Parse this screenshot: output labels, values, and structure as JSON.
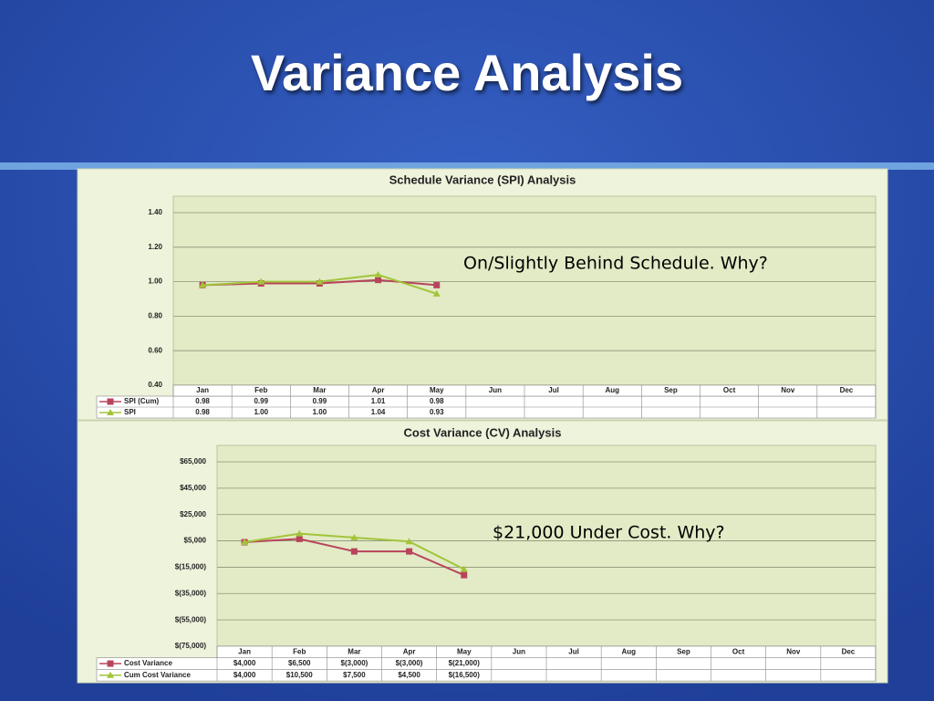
{
  "title": "Variance Analysis",
  "chart_data": [
    {
      "type": "line",
      "title": "Schedule Variance (SPI) Analysis",
      "categories": [
        "Jan",
        "Feb",
        "Mar",
        "Apr",
        "May",
        "Jun",
        "Jul",
        "Aug",
        "Sep",
        "Oct",
        "Nov",
        "Dec"
      ],
      "series": [
        {
          "name": "SPI (Cum)",
          "color": "#b8445c",
          "marker": "square",
          "values": [
            0.98,
            0.99,
            0.99,
            1.01,
            0.98,
            null,
            null,
            null,
            null,
            null,
            null,
            null
          ],
          "value_labels": [
            "0.98",
            "0.99",
            "0.99",
            "1.01",
            "0.98",
            null,
            null,
            null,
            null,
            null,
            null,
            null
          ]
        },
        {
          "name": "SPI",
          "color": "#a3c43a",
          "marker": "triangle",
          "values": [
            0.98,
            1,
            1,
            1.04,
            0.93,
            null,
            null,
            null,
            null,
            null,
            null,
            null
          ],
          "value_labels": [
            "0.98",
            "1.00",
            "1.00",
            "1.04",
            "0.93",
            null,
            null,
            null,
            null,
            null,
            null,
            null
          ]
        }
      ],
      "ylim": [
        0.4,
        1.4
      ],
      "yticks": [
        {
          "value": 0.4,
          "label": "0.40"
        },
        {
          "value": 0.6,
          "label": "0.60"
        },
        {
          "value": 0.8,
          "label": "0.80"
        },
        {
          "value": 1,
          "label": "1.00"
        },
        {
          "value": 1.2,
          "label": "1.20"
        },
        {
          "value": 1.4,
          "label": "1.40"
        }
      ],
      "grid": true,
      "annotation": "On/Slightly Behind Schedule.  Why?"
    },
    {
      "type": "line",
      "title": "Cost Variance (CV) Analysis",
      "categories": [
        "Jan",
        "Feb",
        "Mar",
        "Apr",
        "May",
        "Jun",
        "Jul",
        "Aug",
        "Sep",
        "Oct",
        "Nov",
        "Dec"
      ],
      "series": [
        {
          "name": "Cost Variance",
          "color": "#b8445c",
          "marker": "square",
          "values": [
            4000,
            6500,
            -3000,
            -3000,
            -21000,
            null,
            null,
            null,
            null,
            null,
            null,
            null
          ],
          "value_labels": [
            "$4,000",
            "$6,500",
            "$(3,000)",
            "$(3,000)",
            "$(21,000)",
            null,
            null,
            null,
            null,
            null,
            null,
            null
          ]
        },
        {
          "name": "Cum Cost Variance",
          "color": "#a3c43a",
          "marker": "triangle",
          "values": [
            4000,
            10500,
            7500,
            4500,
            -16500,
            null,
            null,
            null,
            null,
            null,
            null,
            null
          ],
          "value_labels": [
            "$4,000",
            "$10,500",
            "$7,500",
            "$4,500",
            "$(16,500)",
            null,
            null,
            null,
            null,
            null,
            null,
            null
          ]
        }
      ],
      "ylim": [
        -75000,
        65000
      ],
      "yticks": [
        {
          "value": -75000,
          "label": "$(75,000)"
        },
        {
          "value": -55000,
          "label": "$(55,000)"
        },
        {
          "value": -35000,
          "label": "$(35,000)"
        },
        {
          "value": -15000,
          "label": "$(15,000)"
        },
        {
          "value": 5000,
          "label": "$5,000"
        },
        {
          "value": 25000,
          "label": "$25,000"
        },
        {
          "value": 45000,
          "label": "$45,000"
        },
        {
          "value": 65000,
          "label": "$65,000"
        }
      ],
      "grid": true,
      "annotation": "$21,000 Under Cost.  Why?"
    }
  ]
}
